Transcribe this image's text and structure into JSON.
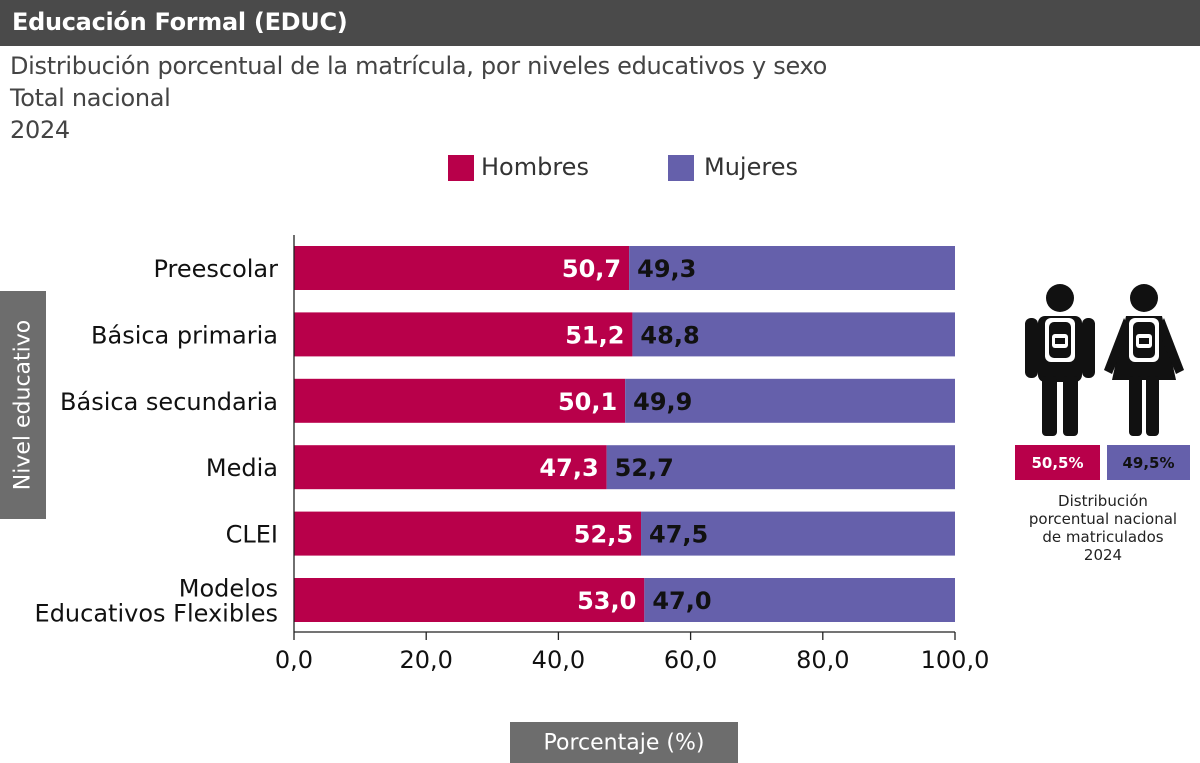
{
  "header": {
    "title": "Educación Formal (EDUC)"
  },
  "subtitle": {
    "line1": "Distribución porcentual de la matrícula, por niveles educativos y sexo",
    "line2": "Total nacional",
    "line3": "2024"
  },
  "colors": {
    "hombres": "#b8004a",
    "mujeres": "#6560ab",
    "label_box": "#6d6d6d",
    "header": "#4a4a4a"
  },
  "chart_data": {
    "type": "bar",
    "orientation": "horizontal",
    "stacked": true,
    "title": "",
    "xlabel": "Porcentaje (%)",
    "ylabel": "Nivel educativo",
    "xlim": [
      0,
      100
    ],
    "xticks": [
      "0,0",
      "20,0",
      "40,0",
      "60,0",
      "80,0",
      "100,0"
    ],
    "legend_position": "top",
    "categories": [
      [
        "Preescolar"
      ],
      [
        "Básica primaria"
      ],
      [
        "Básica secundaria"
      ],
      [
        "Media"
      ],
      [
        "CLEI"
      ],
      [
        "Modelos",
        "Educativos Flexibles"
      ]
    ],
    "series": [
      {
        "name": "Hombres",
        "values": [
          50.7,
          51.2,
          50.1,
          47.3,
          52.5,
          53.0
        ],
        "labels": [
          "50,7",
          "51,2",
          "50,1",
          "47,3",
          "52,5",
          "53,0"
        ]
      },
      {
        "name": "Mujeres",
        "values": [
          49.3,
          48.8,
          49.9,
          52.7,
          47.5,
          47.0
        ],
        "labels": [
          "49,3",
          "48,8",
          "49,9",
          "52,7",
          "47,5",
          "47,0"
        ]
      }
    ]
  },
  "sidebar": {
    "hombres_pct": "50,5%",
    "mujeres_pct": "49,5%",
    "caption": [
      "Distribución",
      "porcentual nacional",
      "de matriculados",
      "2024"
    ],
    "icons": [
      "male-student-icon",
      "female-student-icon"
    ]
  }
}
